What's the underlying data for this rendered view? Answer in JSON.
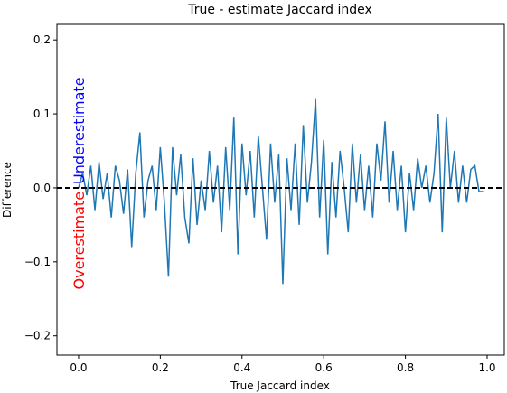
{
  "chart_data": {
    "type": "line",
    "title": "True - estimate Jaccard index",
    "x_label": "True Jaccard index",
    "y_label": "Difference",
    "annotations": [
      {
        "text": "Underestimate",
        "color": "#0000ff"
      },
      {
        "text": "Overestimate",
        "color": "#ff0000"
      }
    ],
    "reference_line": {
      "value": 0,
      "color": "#000000",
      "dashed": true
    },
    "x": [
      0.0,
      0.01,
      0.02,
      0.03,
      0.04,
      0.05,
      0.06,
      0.07,
      0.08,
      0.09,
      0.1,
      0.11,
      0.12,
      0.13,
      0.14,
      0.15,
      0.16,
      0.17,
      0.18,
      0.19,
      0.2,
      0.21,
      0.22,
      0.23,
      0.24,
      0.25,
      0.26,
      0.27,
      0.28,
      0.29,
      0.3,
      0.31,
      0.32,
      0.33,
      0.34,
      0.35,
      0.36,
      0.37,
      0.38,
      0.39,
      0.4,
      0.41,
      0.42,
      0.43,
      0.44,
      0.45,
      0.46,
      0.47,
      0.48,
      0.49,
      0.5,
      0.51,
      0.52,
      0.53,
      0.54,
      0.55,
      0.56,
      0.57,
      0.58,
      0.59,
      0.6,
      0.61,
      0.62,
      0.63,
      0.64,
      0.65,
      0.66,
      0.67,
      0.68,
      0.69,
      0.7,
      0.71,
      0.72,
      0.73,
      0.74,
      0.75,
      0.76,
      0.77,
      0.78,
      0.79,
      0.8,
      0.81,
      0.82,
      0.83,
      0.84,
      0.85,
      0.86,
      0.87,
      0.88,
      0.89,
      0.9,
      0.91,
      0.92,
      0.93,
      0.94,
      0.95,
      0.96,
      0.97,
      0.98,
      0.99
    ],
    "series": [
      {
        "name": "Difference",
        "color": "#1f77b4",
        "values": [
          0.0,
          0.02,
          -0.01,
          0.03,
          -0.03,
          0.035,
          -0.015,
          0.02,
          -0.04,
          0.03,
          0.01,
          -0.035,
          0.025,
          -0.08,
          0.02,
          0.075,
          -0.04,
          0.01,
          0.03,
          -0.03,
          0.055,
          -0.02,
          -0.12,
          0.055,
          -0.01,
          0.045,
          -0.04,
          -0.075,
          0.04,
          -0.05,
          0.01,
          -0.03,
          0.05,
          -0.02,
          0.03,
          -0.06,
          0.055,
          -0.03,
          0.095,
          -0.09,
          0.06,
          -0.01,
          0.05,
          -0.04,
          0.07,
          0.0,
          -0.07,
          0.06,
          -0.02,
          0.045,
          -0.13,
          0.04,
          -0.03,
          0.06,
          -0.05,
          0.085,
          -0.02,
          0.035,
          0.12,
          -0.04,
          0.065,
          -0.09,
          0.035,
          -0.04,
          0.05,
          0.0,
          -0.06,
          0.06,
          -0.02,
          0.045,
          -0.03,
          0.03,
          -0.04,
          0.06,
          0.01,
          0.09,
          -0.02,
          0.05,
          -0.03,
          0.03,
          -0.06,
          0.02,
          -0.03,
          0.04,
          0.0,
          0.03,
          -0.02,
          0.02,
          0.1,
          -0.06,
          0.095,
          0.0,
          0.05,
          -0.02,
          0.03,
          -0.02,
          0.025,
          0.03,
          -0.005,
          -0.005
        ]
      }
    ],
    "xlim": [
      -0.053,
      1.042
    ],
    "ylim": [
      -0.226,
      0.221
    ],
    "xticks": [
      {
        "value": 0,
        "label": "0.0"
      },
      {
        "value": 0.2,
        "label": "0.2"
      },
      {
        "value": 0.4,
        "label": "0.4"
      },
      {
        "value": 0.6,
        "label": "0.6"
      },
      {
        "value": 0.8,
        "label": "0.8"
      },
      {
        "value": 1,
        "label": "1.0"
      }
    ],
    "yticks": [
      {
        "value": -0.2,
        "label": "−0.2"
      },
      {
        "value": -0.1,
        "label": "−0.1"
      },
      {
        "value": 0,
        "label": "0.0"
      },
      {
        "value": 0.1,
        "label": "0.1"
      },
      {
        "value": 0.2,
        "label": "0.2"
      }
    ],
    "grid": false
  }
}
